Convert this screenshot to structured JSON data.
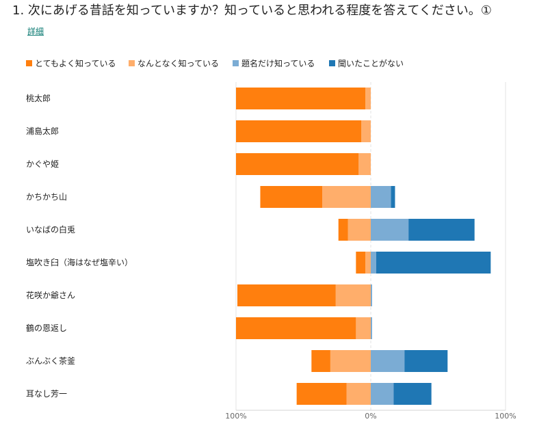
{
  "question": {
    "number": "1.",
    "text": "次にあげる昔話を知っていますか？知っていると思われる程度を答えてください。①"
  },
  "detail_link": "詳細",
  "legend": [
    {
      "label": "とてもよく知っている",
      "color": "#ff7f0e"
    },
    {
      "label": "なんとなく知っている",
      "color": "#ffae6b"
    },
    {
      "label": "題名だけ知っている",
      "color": "#7bacd4"
    },
    {
      "label": "聞いたことがない",
      "color": "#1f77b4"
    }
  ],
  "chart_data": {
    "type": "bar",
    "orientation": "horizontal",
    "layout": "diverging-stacked",
    "categories": [
      "桃太郎",
      "浦島太郎",
      "かぐや姫",
      "かちかち山",
      "いなばの白兎",
      "塩吹き臼（海はなぜ塩辛い）",
      "花咲か爺さん",
      "鶴の恩返し",
      "ぶんぶく茶釜",
      "耳なし芳一"
    ],
    "series": [
      {
        "name": "とてもよく知っている",
        "side": "negative",
        "color": "#ff7f0e",
        "values": [
          96,
          93,
          91,
          46,
          7,
          7,
          73,
          89,
          14,
          37
        ]
      },
      {
        "name": "なんとなく知っている",
        "side": "negative",
        "color": "#ffae6b",
        "values": [
          4,
          7,
          9,
          36,
          17,
          4,
          26,
          11,
          30,
          18
        ]
      },
      {
        "name": "題名だけ知っている",
        "side": "positive",
        "color": "#7bacd4",
        "values": [
          0,
          0,
          0,
          15,
          28,
          4,
          1,
          1,
          25,
          17
        ]
      },
      {
        "name": "聞いたことがない",
        "side": "positive",
        "color": "#1f77b4",
        "values": [
          0,
          0,
          0,
          3,
          49,
          85,
          0,
          0,
          32,
          28
        ]
      }
    ],
    "xlim": [
      -100,
      100
    ],
    "ticks": [
      {
        "value": -100,
        "label": "100%"
      },
      {
        "value": 0,
        "label": "0%"
      },
      {
        "value": 100,
        "label": "100%"
      }
    ],
    "grid": true,
    "legend_position": "top-left"
  }
}
